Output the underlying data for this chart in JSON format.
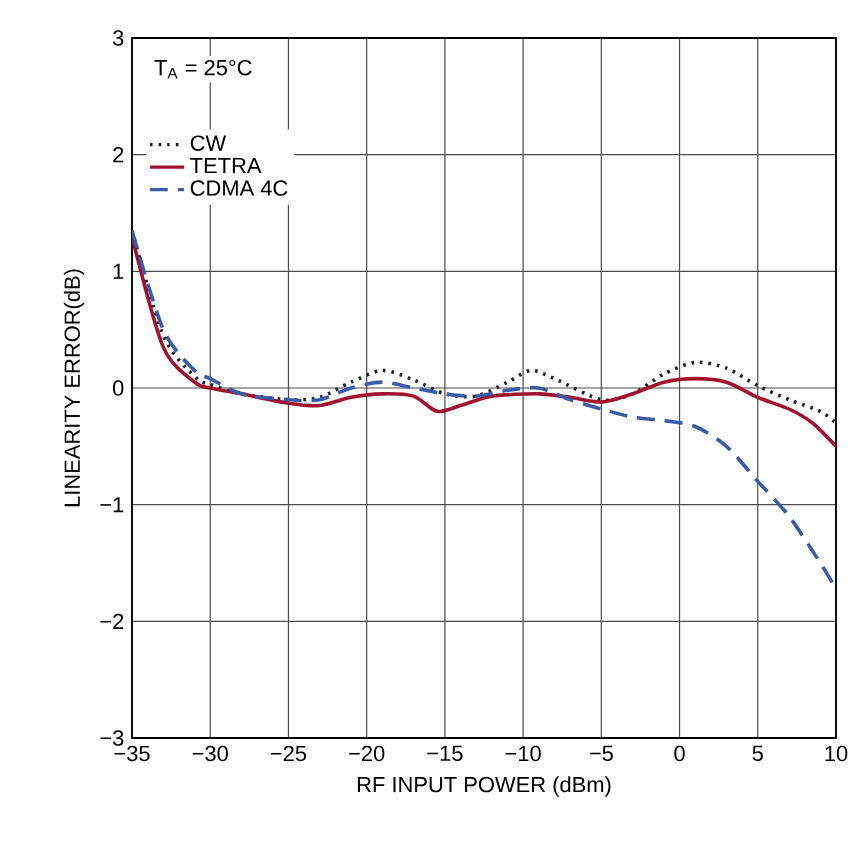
{
  "chart_data": {
    "type": "line",
    "xlabel": "RF INPUT POWER (dBm)",
    "ylabel": "LINEARITY ERROR(dB)",
    "annotations": [
      "T$_{A}$ = 25°C"
    ],
    "xlim": [
      -35,
      10
    ],
    "ylim": [
      -3,
      3
    ],
    "xticks": [
      {
        "value": -35,
        "label": "−35"
      },
      {
        "value": -30,
        "label": "−30"
      },
      {
        "value": -25,
        "label": "−25"
      },
      {
        "value": -20,
        "label": "−20"
      },
      {
        "value": -15,
        "label": "−15"
      },
      {
        "value": -10,
        "label": "−10"
      },
      {
        "value": -5,
        "label": "−5"
      },
      0,
      5,
      10
    ],
    "yticks": [
      {
        "value": -3,
        "label": "−3"
      },
      {
        "value": -2,
        "label": "−2"
      },
      {
        "value": -1,
        "label": "−1"
      },
      0,
      1,
      2,
      3
    ],
    "grid": true,
    "legend": "top left",
    "series": [
      {
        "name": "CW",
        "color": "#231f20",
        "line_style": "dotted",
        "x": [
          -35,
          -33,
          -31,
          -30,
          -28,
          -25,
          -23,
          -21,
          -19,
          -17,
          -15,
          -13,
          -11,
          -9.5,
          -8,
          -5,
          -3,
          -1,
          1,
          3,
          5,
          7,
          9,
          10
        ],
        "values": [
          1.35,
          0.45,
          0.1,
          0.03,
          -0.05,
          -0.1,
          -0.08,
          0.05,
          0.15,
          0.07,
          -0.05,
          -0.07,
          0.05,
          0.15,
          0.08,
          -0.1,
          -0.05,
          0.12,
          0.22,
          0.17,
          0.02,
          -0.1,
          -0.2,
          -0.3
        ]
      },
      {
        "name": "TETRA",
        "color": "#a0122f",
        "line_style": "solid",
        "x": [
          -35,
          -33,
          -31,
          -30,
          -28,
          -25,
          -23,
          -21,
          -19,
          -17,
          -15.5,
          -14,
          -12,
          -9,
          -7,
          -5,
          -3,
          -1,
          1,
          3,
          5,
          7,
          8.5,
          10
        ],
        "values": [
          1.3,
          0.35,
          0.05,
          0.0,
          -0.05,
          -0.13,
          -0.15,
          -0.08,
          -0.05,
          -0.07,
          -0.2,
          -0.15,
          -0.07,
          -0.05,
          -0.08,
          -0.12,
          -0.05,
          0.05,
          0.08,
          0.05,
          -0.08,
          -0.18,
          -0.3,
          -0.5
        ]
      },
      {
        "name": "CDMA 4C",
        "color": "#3a5ba8",
        "line_style": "dashed",
        "x": [
          -35,
          -33,
          -31,
          -30,
          -28,
          -25,
          -23,
          -21,
          -19,
          -17,
          -15,
          -13,
          -11,
          -9,
          -7,
          -5,
          -3,
          -1,
          1,
          3,
          5,
          7,
          9,
          10
        ],
        "values": [
          1.35,
          0.5,
          0.15,
          0.08,
          -0.05,
          -0.1,
          -0.1,
          0.0,
          0.05,
          0.0,
          -0.05,
          -0.07,
          -0.02,
          0.0,
          -0.1,
          -0.18,
          -0.25,
          -0.28,
          -0.33,
          -0.5,
          -0.8,
          -1.1,
          -1.5,
          -1.72
        ]
      }
    ]
  }
}
